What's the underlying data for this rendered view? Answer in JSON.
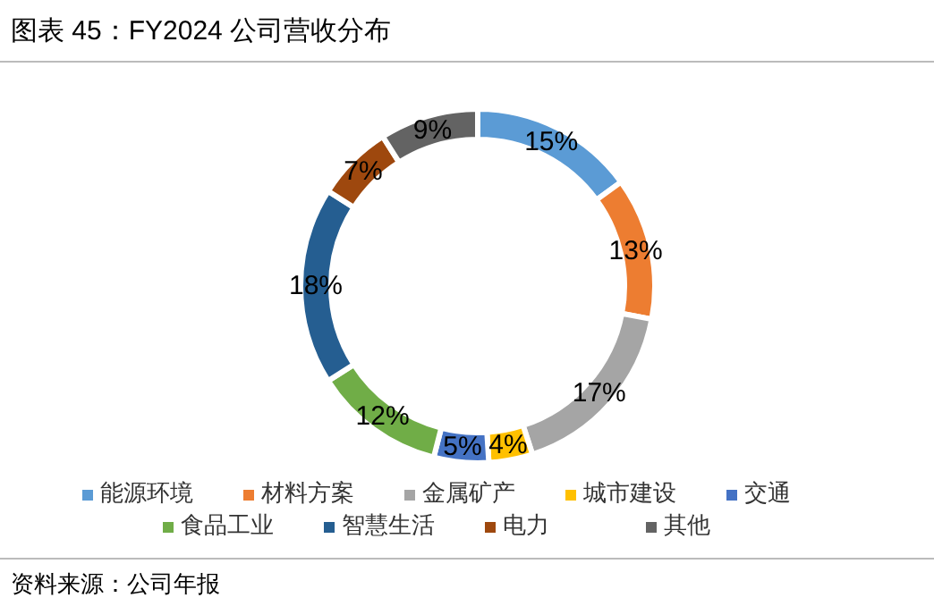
{
  "chart_data": {
    "type": "donut",
    "title": "图表 45：FY2024 公司营收分布",
    "categories": [
      "能源环境",
      "材料方案",
      "金属矿产",
      "城市建设",
      "交通",
      "食品工业",
      "智慧生活",
      "电力",
      "其他"
    ],
    "values": [
      15,
      13,
      17,
      4,
      5,
      12,
      18,
      7,
      9
    ],
    "value_labels": [
      "15%",
      "13%",
      "17%",
      "4%",
      "5%",
      "12%",
      "18%",
      "7%",
      "9%"
    ],
    "colors": [
      "#5b9bd5",
      "#ed7d31",
      "#a5a5a5",
      "#ffc000",
      "#4472c4",
      "#70ad47",
      "#255e91",
      "#9e480e",
      "#636363"
    ],
    "legend": "bottom",
    "annotations": [
      "资料来源：公司年报"
    ]
  }
}
